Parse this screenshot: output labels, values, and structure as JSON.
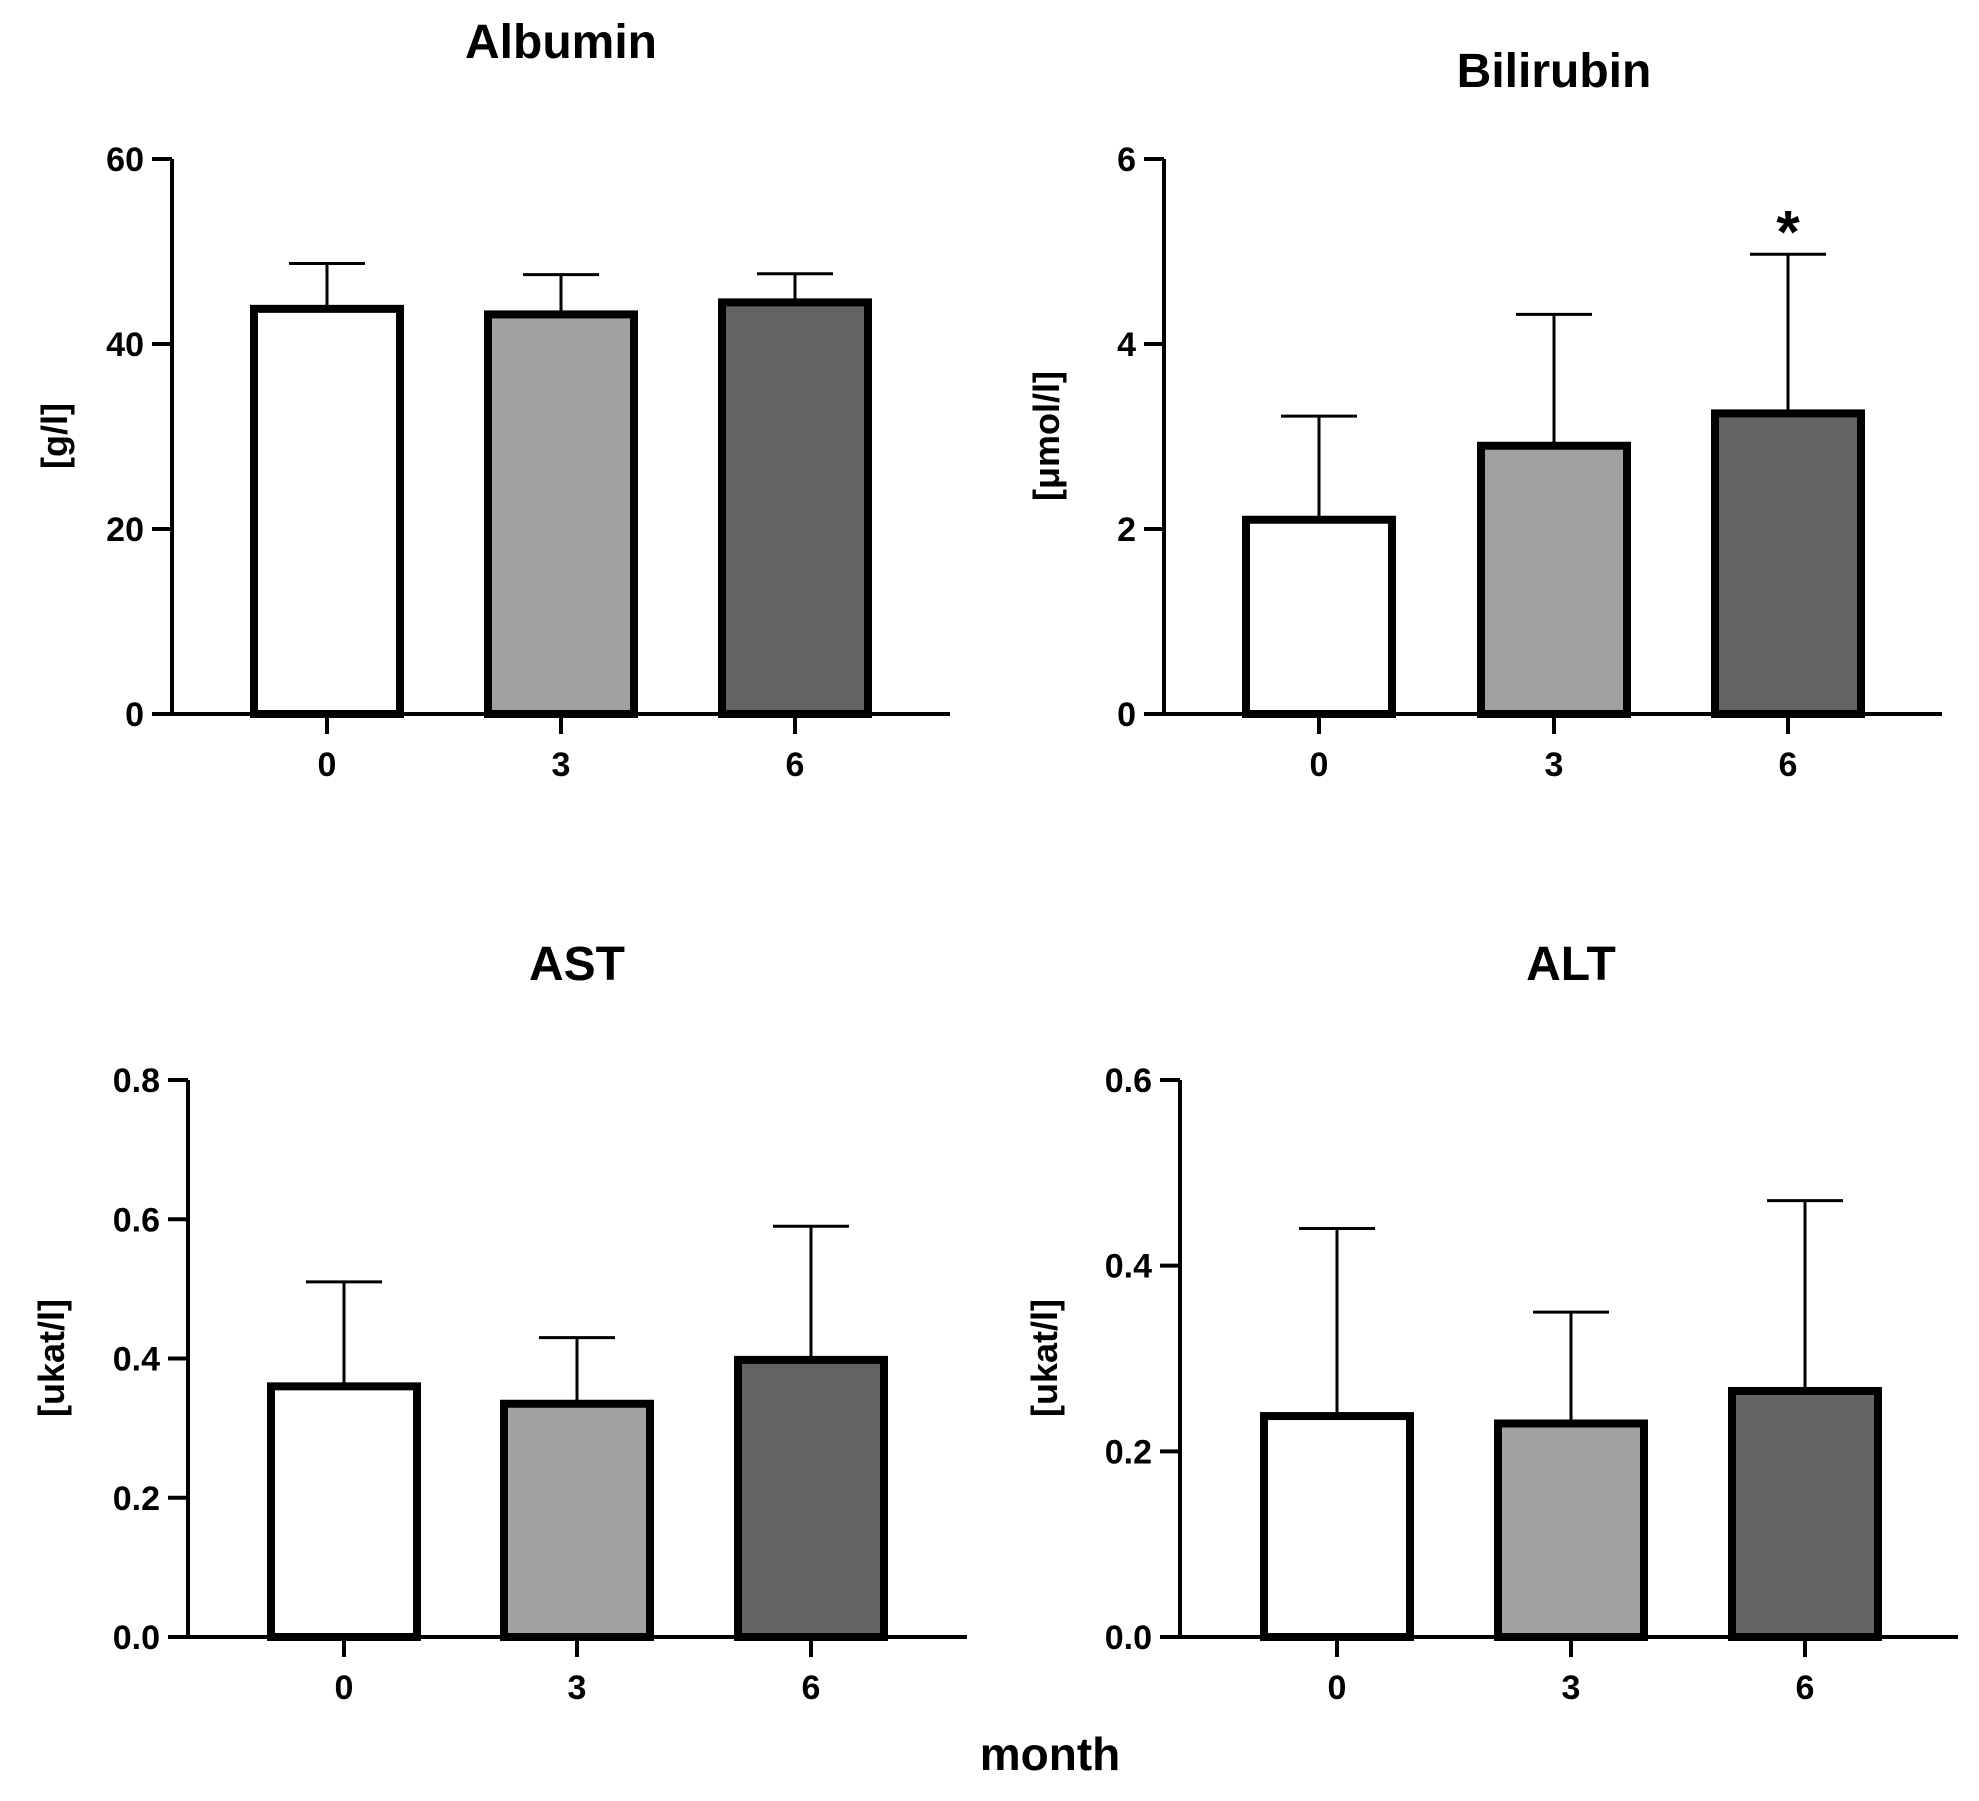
{
  "shared_xlabel": "month",
  "chart_data": [
    {
      "type": "bar",
      "title": "Albumin",
      "ylabel": "[g/l]",
      "xlabel": "",
      "categories": [
        "0",
        "3",
        "6"
      ],
      "values": [
        43.8,
        43.2,
        44.5
      ],
      "errors_upper": [
        48.7,
        47.5,
        47.6
      ],
      "ylim": [
        0,
        60
      ],
      "yticks": [
        0,
        20,
        40,
        60
      ],
      "ytick_labels": [
        "0",
        "20",
        "40",
        "60"
      ],
      "significance": [
        "",
        "",
        ""
      ],
      "colors": [
        "#ffffff",
        "#a0a0a3",
        "#636363"
      ]
    },
    {
      "type": "bar",
      "title": "Bilirubin",
      "ylabel": "[μmol/l]",
      "xlabel": "",
      "categories": [
        "0",
        "3",
        "6"
      ],
      "values": [
        2.1,
        2.9,
        3.25
      ],
      "errors_upper": [
        3.22,
        4.32,
        4.97
      ],
      "ylim": [
        0,
        6
      ],
      "yticks": [
        0,
        2,
        4,
        6
      ],
      "ytick_labels": [
        "0",
        "2",
        "4",
        "6"
      ],
      "significance": [
        "",
        "",
        "*"
      ],
      "colors": [
        "#ffffff",
        "#a0a0a3",
        "#636363"
      ]
    },
    {
      "type": "bar",
      "title": "AST",
      "ylabel": "[ukat/l]",
      "xlabel": "",
      "categories": [
        "0",
        "3",
        "6"
      ],
      "values": [
        0.36,
        0.335,
        0.398
      ],
      "errors_upper": [
        0.51,
        0.43,
        0.59
      ],
      "ylim": [
        0,
        0.8
      ],
      "yticks": [
        0,
        0.2,
        0.4,
        0.6,
        0.8
      ],
      "ytick_labels": [
        "0.0",
        "0.2",
        "0.4",
        "0.6",
        "0.8"
      ],
      "significance": [
        "",
        "",
        ""
      ],
      "colors": [
        "#ffffff",
        "#a0a0a3",
        "#636363"
      ]
    },
    {
      "type": "bar",
      "title": "ALT",
      "ylabel": "[ukat/l]",
      "xlabel": "",
      "categories": [
        "0",
        "3",
        "6"
      ],
      "values": [
        0.238,
        0.23,
        0.265
      ],
      "errors_upper": [
        0.44,
        0.35,
        0.47
      ],
      "ylim": [
        0,
        0.6
      ],
      "yticks": [
        0,
        0.2,
        0.4,
        0.6
      ],
      "ytick_labels": [
        "0.0",
        "0.2",
        "0.4",
        "0.6"
      ],
      "significance": [
        "",
        "",
        ""
      ],
      "colors": [
        "#ffffff",
        "#a0a0a3",
        "#636363"
      ]
    }
  ]
}
